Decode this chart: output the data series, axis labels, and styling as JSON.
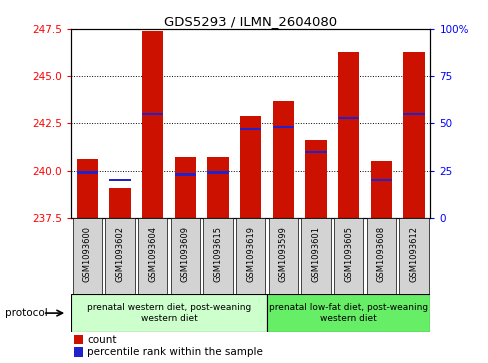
{
  "title": "GDS5293 / ILMN_2604080",
  "samples": [
    "GSM1093600",
    "GSM1093602",
    "GSM1093604",
    "GSM1093609",
    "GSM1093615",
    "GSM1093619",
    "GSM1093599",
    "GSM1093601",
    "GSM1093605",
    "GSM1093608",
    "GSM1093612"
  ],
  "count_values": [
    240.6,
    239.1,
    247.4,
    240.7,
    240.7,
    242.9,
    243.7,
    241.6,
    246.3,
    240.5,
    246.3
  ],
  "percentile_values": [
    24,
    20,
    55,
    23,
    24,
    47,
    48,
    35,
    53,
    20,
    55
  ],
  "ylim_left": [
    237.5,
    247.5
  ],
  "ylim_right": [
    0,
    100
  ],
  "yticks_left": [
    237.5,
    240.0,
    242.5,
    245.0,
    247.5
  ],
  "yticks_right": [
    0,
    25,
    50,
    75,
    100
  ],
  "ytick_labels_right": [
    "0",
    "25",
    "50",
    "75",
    "100%"
  ],
  "bar_color": "#cc1100",
  "percentile_color": "#2222cc",
  "group1_label": "prenatal western diet, post-weaning\nwestern diet",
  "group2_label": "prenatal low-fat diet, post-weaning\nwestern diet",
  "group1_indices": [
    0,
    1,
    2,
    3,
    4,
    5
  ],
  "group2_indices": [
    6,
    7,
    8,
    9,
    10
  ],
  "group1_color": "#ccffcc",
  "group2_color": "#66ee66",
  "legend_count_label": "count",
  "legend_percentile_label": "percentile rank within the sample",
  "base_value": 237.5,
  "bar_width": 0.65
}
